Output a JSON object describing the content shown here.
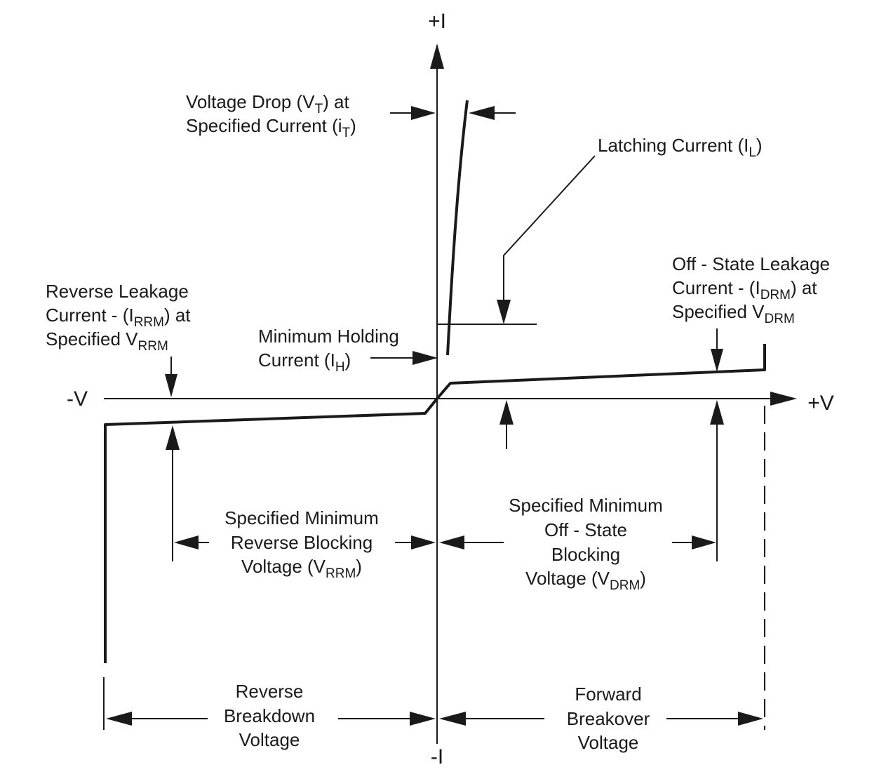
{
  "axes": {
    "pos_current": "+I",
    "neg_current": "-I",
    "pos_voltage": "+V",
    "neg_voltage": "-V"
  },
  "labels": {
    "voltage_drop": {
      "line1_a": "Voltage Drop (V",
      "line1_sub": "T",
      "line1_b": ") at",
      "line2_a": "Specified Current (i",
      "line2_sub": "T",
      "line2_b": ")"
    },
    "latching_current": {
      "a": "Latching Current (I",
      "sub": "L",
      "b": ")"
    },
    "off_state_leakage": {
      "line1": "Off - State Leakage",
      "line2_a": "Current - (I",
      "line2_sub": "DRM",
      "line2_b": ") at",
      "line3_a": "Specified V",
      "line3_sub": "DRM"
    },
    "reverse_leakage": {
      "line1": "Reverse Leakage",
      "line2_a": "Current - (I",
      "line2_sub": "RRM",
      "line2_b": ") at",
      "line3_a": "Specified V",
      "line3_sub": "RRM"
    },
    "holding_current": {
      "line1": "Minimum Holding",
      "line2_a": "Current (I",
      "line2_sub": "H",
      "line2_b": ")"
    },
    "reverse_blocking": {
      "line1": "Specified Minimum",
      "line2": "Reverse Blocking",
      "line3_a": "Voltage (V",
      "line3_sub": "RRM",
      "line3_b": ")"
    },
    "forward_blocking": {
      "line1": "Specified Minimum",
      "line2": "Off - State",
      "line3": "Blocking",
      "line4_a": "Voltage (V",
      "line4_sub": "DRM",
      "line4_b": ")"
    },
    "reverse_breakdown": {
      "line1": "Reverse",
      "line2": "Breakdown",
      "line3": "Voltage"
    },
    "forward_breakover": {
      "line1": "Forward",
      "line2": "Breakover",
      "line3": "Voltage"
    }
  }
}
